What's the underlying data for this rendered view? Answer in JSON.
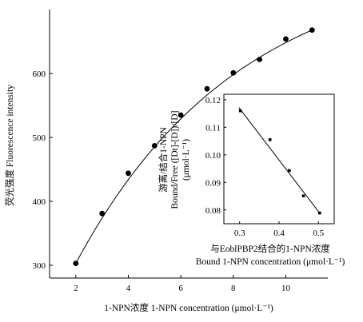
{
  "chart_data": [
    {
      "type": "scatter",
      "title": "",
      "xlabel": "1-NPN浓度 1-NPN concentration (μmol·L⁻¹)",
      "ylabel": "荧光强度 Fluorescence intensity",
      "xlim": [
        1,
        11.6
      ],
      "ylim": [
        280,
        700
      ],
      "xticks": [
        2,
        4,
        6,
        8,
        10
      ],
      "yticks": [
        300,
        400,
        500,
        600
      ],
      "series": [
        {
          "x": [
            2,
            3,
            4,
            5,
            6,
            7,
            8,
            9,
            10,
            11
          ],
          "y": [
            303,
            381,
            444,
            487,
            535,
            576,
            601,
            622,
            654,
            668
          ]
        }
      ],
      "fit": {
        "type": "saturation-curve",
        "x": [
          2,
          11
        ],
        "y": [
          303,
          668
        ]
      }
    },
    {
      "type": "scatter",
      "title": "",
      "xlabel_line1": "与EoblPBP2结合的1-NPN浓度",
      "xlabel_line2": "Bound 1-NPN concentration (μmol·L⁻¹)",
      "ylabel_line1": "游离/结合1-NPN",
      "ylabel_line2": "Bound/Free ([Dt]-[D])/[D]",
      "ylabel_line3": "(μmol·L⁻¹)",
      "xlim": [
        0.26,
        0.54
      ],
      "ylim": [
        0.075,
        0.122
      ],
      "xticks": [
        "0.3",
        "0.4",
        "0.5"
      ],
      "yticks": [
        "0.08",
        "0.09",
        "0.10",
        "0.11",
        "0.12"
      ],
      "series": [
        {
          "x": [
            0.302,
            0.377,
            0.426,
            0.462,
            0.503
          ],
          "y": [
            0.116,
            0.1055,
            0.0943,
            0.0851,
            0.0789
          ]
        }
      ],
      "fit": {
        "type": "linear",
        "x": [
          0.298,
          0.505
        ],
        "y": [
          0.1172,
          0.0785
        ]
      }
    }
  ]
}
